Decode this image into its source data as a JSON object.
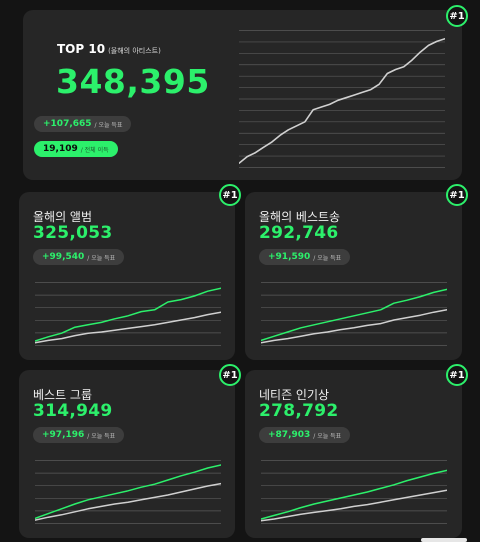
{
  "top_card": {
    "rank": "#1",
    "title": "TOP 10",
    "subtitle": "(올해의 아티스트)",
    "value": "348,395",
    "delta": "+107,665",
    "delta_suffix": "/ 오늘 득표",
    "secondary": "19,109",
    "secondary_suffix": "/ 전체 이득"
  },
  "cards": [
    {
      "rank": "#1",
      "title": "올해의 앨범",
      "value": "325,053",
      "delta": "+99,540",
      "delta_suffix": "/ 오늘 득표"
    },
    {
      "rank": "#1",
      "title": "올해의 베스트송",
      "value": "292,746",
      "delta": "+91,590",
      "delta_suffix": "/ 오늘 득표"
    },
    {
      "rank": "#1",
      "title": "베스트 그룹",
      "value": "314,949",
      "delta": "+97,196",
      "delta_suffix": "/ 오늘 득표"
    },
    {
      "rank": "#1",
      "title": "네티즌 인기상",
      "value": "278,792",
      "delta": "+87,903",
      "delta_suffix": "/ 오늘 득표"
    }
  ],
  "colors": {
    "accent": "#2cf06b",
    "card": "#262626",
    "background": "#141414",
    "secondary_line": "#d0d0d0"
  },
  "chart_data": [
    {
      "type": "line",
      "series": [
        {
          "values": [
            0.02,
            0.07,
            0.1,
            0.14,
            0.18,
            0.23,
            0.27,
            0.3,
            0.33,
            0.42,
            0.44,
            0.46,
            0.49,
            0.51,
            0.53,
            0.55,
            0.57,
            0.61,
            0.69,
            0.72,
            0.74,
            0.79,
            0.85,
            0.9,
            0.93,
            0.95
          ]
        }
      ]
    },
    {
      "type": "line",
      "series": [
        {
          "values": [
            0.05,
            0.12,
            0.18,
            0.28,
            0.32,
            0.36,
            0.42,
            0.47,
            0.54,
            0.57,
            0.7,
            0.74,
            0.8,
            0.88,
            0.93
          ]
        },
        {
          "values": [
            0.02,
            0.06,
            0.09,
            0.14,
            0.18,
            0.2,
            0.23,
            0.26,
            0.29,
            0.32,
            0.36,
            0.4,
            0.44,
            0.49,
            0.53
          ]
        }
      ]
    },
    {
      "type": "line",
      "series": [
        {
          "values": [
            0.06,
            0.13,
            0.2,
            0.27,
            0.32,
            0.37,
            0.42,
            0.47,
            0.52,
            0.57,
            0.68,
            0.73,
            0.79,
            0.86,
            0.91
          ]
        },
        {
          "values": [
            0.02,
            0.06,
            0.09,
            0.13,
            0.17,
            0.2,
            0.24,
            0.27,
            0.31,
            0.34,
            0.4,
            0.44,
            0.48,
            0.53,
            0.57
          ]
        }
      ]
    },
    {
      "type": "line",
      "series": [
        {
          "values": [
            0.06,
            0.14,
            0.22,
            0.3,
            0.37,
            0.42,
            0.47,
            0.52,
            0.58,
            0.63,
            0.7,
            0.77,
            0.83,
            0.9,
            0.95
          ]
        },
        {
          "values": [
            0.03,
            0.08,
            0.12,
            0.17,
            0.22,
            0.26,
            0.3,
            0.33,
            0.37,
            0.41,
            0.45,
            0.5,
            0.55,
            0.6,
            0.64
          ]
        }
      ]
    },
    {
      "type": "line",
      "series": [
        {
          "values": [
            0.05,
            0.11,
            0.17,
            0.24,
            0.3,
            0.35,
            0.4,
            0.45,
            0.5,
            0.56,
            0.62,
            0.69,
            0.75,
            0.81,
            0.86
          ]
        },
        {
          "values": [
            0.02,
            0.05,
            0.09,
            0.13,
            0.16,
            0.19,
            0.22,
            0.26,
            0.29,
            0.33,
            0.37,
            0.41,
            0.45,
            0.49,
            0.53
          ]
        }
      ]
    }
  ]
}
